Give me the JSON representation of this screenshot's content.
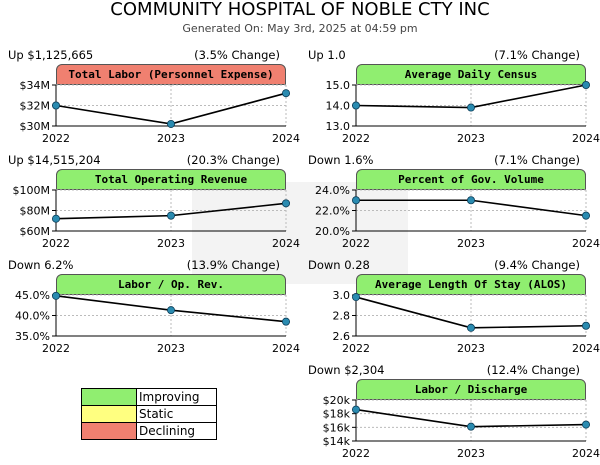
{
  "header": {
    "title": "COMMUNITY HOSPITAL OF NOBLE CTY  INC",
    "generated": "Generated On: May 3rd, 2025 at 04:59 pm"
  },
  "colors": {
    "improving": "#90ee70",
    "static": "#ffff80",
    "declining": "#f08070",
    "line": "#000000",
    "marker": "#2a8bb0",
    "grid": "#bbbbbb"
  },
  "legend": [
    {
      "key": "improving",
      "label": "Improving"
    },
    {
      "key": "static",
      "label": "Static"
    },
    {
      "key": "declining",
      "label": "Declining"
    }
  ],
  "chart_data": [
    {
      "type": "line",
      "title": "Total Labor (Personnel Expense)",
      "status": "declining",
      "change_left": "Up $1,125,665",
      "change_right": "(3.5% Change)",
      "x": [
        "2022",
        "2023",
        "2024"
      ],
      "values": [
        32.0,
        30.2,
        33.2
      ],
      "ylim": [
        30,
        34
      ],
      "yticks": [
        30,
        32,
        34
      ],
      "ytick_labels": [
        "$30M",
        "$32M",
        "$34M"
      ]
    },
    {
      "type": "line",
      "title": "Average Daily Census",
      "status": "improving",
      "change_left": "Up 1.0",
      "change_right": "(7.1% Change)",
      "x": [
        "2022",
        "2023",
        "2024"
      ],
      "values": [
        14.0,
        13.9,
        15.0
      ],
      "ylim": [
        13,
        15
      ],
      "yticks": [
        13,
        14,
        15
      ],
      "ytick_labels": [
        "13.0",
        "14.0",
        "15.0"
      ]
    },
    {
      "type": "line",
      "title": "Total Operating Revenue",
      "status": "improving",
      "change_left": "Up $14,515,204",
      "change_right": "(20.3% Change)",
      "x": [
        "2022",
        "2023",
        "2024"
      ],
      "values": [
        72.0,
        75.0,
        87.0
      ],
      "ylim": [
        60,
        100
      ],
      "yticks": [
        60,
        80,
        100
      ],
      "ytick_labels": [
        "$60M",
        "$80M",
        "$100M"
      ]
    },
    {
      "type": "line",
      "title": "Percent of Gov. Volume",
      "status": "improving",
      "change_left": "Down 1.6%",
      "change_right": "(7.1% Change)",
      "x": [
        "2022",
        "2023",
        "2024"
      ],
      "values": [
        23.0,
        23.0,
        21.5
      ],
      "ylim": [
        20,
        24
      ],
      "yticks": [
        20,
        22,
        24
      ],
      "ytick_labels": [
        "20.0%",
        "22.0%",
        "24.0%"
      ]
    },
    {
      "type": "line",
      "title": "Labor / Op. Rev.",
      "status": "improving",
      "change_left": "Down 6.2%",
      "change_right": "(13.9% Change)",
      "x": [
        "2022",
        "2023",
        "2024"
      ],
      "values": [
        44.8,
        41.3,
        38.5
      ],
      "ylim": [
        35,
        45
      ],
      "yticks": [
        35,
        40,
        45
      ],
      "ytick_labels": [
        "35.0%",
        "40.0%",
        "45.0%"
      ]
    },
    {
      "type": "line",
      "title": "Average Length Of Stay (ALOS)",
      "status": "improving",
      "change_left": "Down 0.28",
      "change_right": "(9.4% Change)",
      "x": [
        "2022",
        "2023",
        "2024"
      ],
      "values": [
        2.98,
        2.68,
        2.7
      ],
      "ylim": [
        2.6,
        3.0
      ],
      "yticks": [
        2.6,
        2.8,
        3.0
      ],
      "ytick_labels": [
        "2.6",
        "2.8",
        "3.0"
      ]
    },
    {
      "type": "line",
      "title": "Labor / Discharge",
      "status": "improving",
      "change_left": "Down $2,304",
      "change_right": "(12.4% Change)",
      "x": [
        "2022",
        "2023",
        "2024"
      ],
      "values": [
        18.6,
        16.1,
        16.4
      ],
      "ylim": [
        14,
        20
      ],
      "yticks": [
        14,
        16,
        18,
        20
      ],
      "ytick_labels": [
        "$14k",
        "$16k",
        "$18k",
        "$20k"
      ]
    }
  ]
}
